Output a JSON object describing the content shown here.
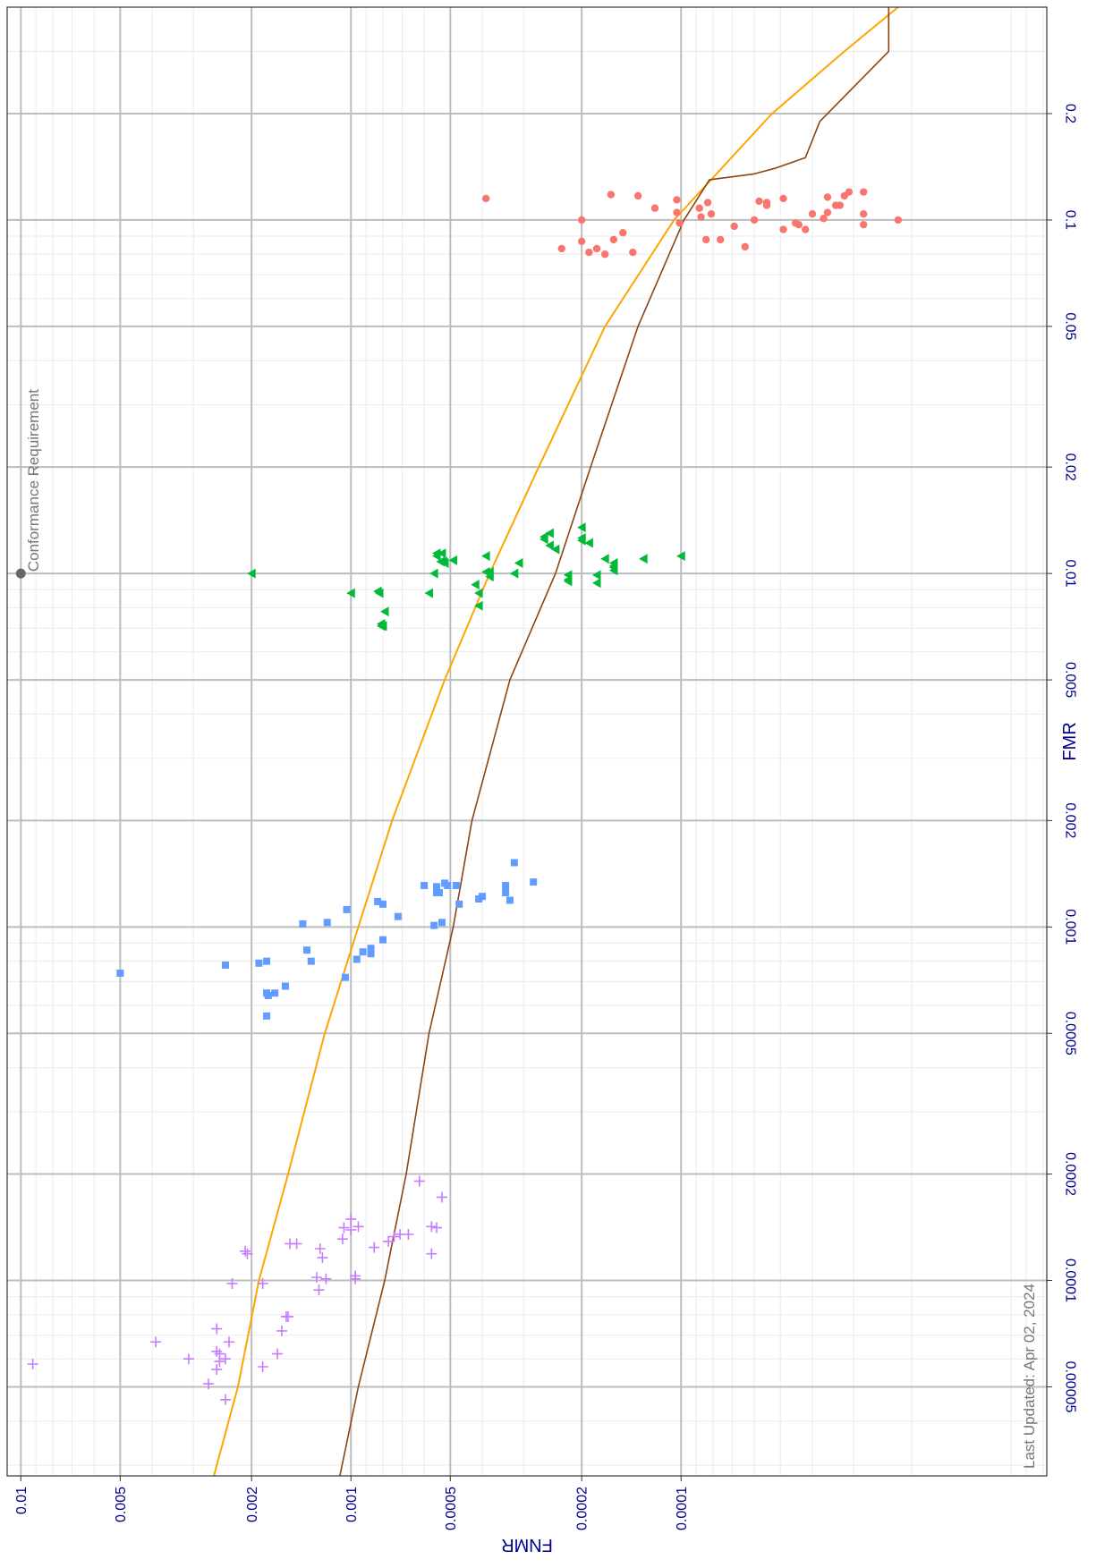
{
  "chart_data": {
    "type": "scatter",
    "orientation": "rotated-90-clockwise",
    "x_axis": {
      "label": "FMR",
      "scale": "log",
      "range": [
        2.8e-05,
        0.4
      ],
      "tick_values": [
        5e-05,
        0.0001,
        0.0002,
        0.0005,
        0.001,
        0.002,
        0.005,
        0.01,
        0.02,
        0.05,
        0.1,
        0.2
      ],
      "tick_labels": [
        "0.00005",
        "0.0001",
        "0.0002",
        "0.0005",
        "0.001",
        "0.002",
        "0.005",
        "0.01",
        "0.02",
        "0.05",
        "0.1",
        "0.2"
      ]
    },
    "y_axis": {
      "label": "FNMR",
      "scale": "log",
      "range": [
        7.8e-06,
        0.011
      ],
      "tick_values": [
        0.01,
        0.005,
        0.002,
        0.001,
        0.0005,
        0.0002,
        0.0001
      ],
      "tick_labels": [
        "0.01",
        "0.005",
        "0.002",
        "0.001",
        "0.0005",
        "0.0002",
        "0.0001"
      ]
    },
    "grid": true,
    "annotations": [
      {
        "text": "Conformance Requirement",
        "x": 0.01,
        "y": 0.01
      },
      {
        "text": "Last Updated: Apr 02, 2024"
      }
    ],
    "series": [
      {
        "marker": "circle",
        "color": "#f8766d",
        "points": [
          [
            0.115,
            0.00039
          ],
          [
            0.1,
            0.0002
          ],
          [
            0.088,
            0.00016
          ],
          [
            0.087,
            0.0002
          ],
          [
            0.083,
            0.00023
          ],
          [
            0.08,
            0.00017
          ],
          [
            0.083,
            0.00018
          ],
          [
            0.092,
            0.00015
          ],
          [
            0.081,
            0.00014
          ],
          [
            0.081,
            0.00019
          ],
          [
            0.118,
            0.000163
          ],
          [
            0.108,
            0.00012
          ],
          [
            0.117,
            0.000135
          ],
          [
            0.098,
            0.000101
          ],
          [
            0.108,
            8.8e-05
          ],
          [
            0.088,
            8.4e-05
          ],
          [
            0.084,
            6.4e-05
          ],
          [
            0.088,
            7.6e-05
          ],
          [
            0.104,
            8.1e-05
          ],
          [
            0.112,
            8.3e-05
          ],
          [
            0.114,
            0.000103
          ],
          [
            0.105,
            0.000103
          ],
          [
            0.102,
            8.7e-05
          ],
          [
            0.096,
            6.9e-05
          ],
          [
            0.1,
            6e-05
          ],
          [
            0.113,
            5.8e-05
          ],
          [
            0.11,
            5.5e-05
          ],
          [
            0.115,
            4.9e-05
          ],
          [
            0.112,
            5.5e-05
          ],
          [
            0.097,
            4.4e-05
          ],
          [
            0.094,
            4.9e-05
          ],
          [
            0.094,
            4.2e-05
          ],
          [
            0.098,
            4.5e-05
          ],
          [
            0.104,
            4e-05
          ],
          [
            0.101,
            3.7e-05
          ],
          [
            0.116,
            3.6e-05
          ],
          [
            0.105,
            3.6e-05
          ],
          [
            0.11,
            3.4e-05
          ],
          [
            0.11,
            3.3e-05
          ],
          [
            0.117,
            3.2e-05
          ],
          [
            0.12,
            3.1e-05
          ],
          [
            0.12,
            2.8e-05
          ],
          [
            0.104,
            2.8e-05
          ],
          [
            0.097,
            2.8e-05
          ],
          [
            0.1,
            2.2e-05
          ]
        ]
      },
      {
        "marker": "triangle",
        "color": "#00ba38",
        "points": [
          [
            0.01,
            0.002
          ],
          [
            0.0088,
            0.001
          ],
          [
            0.0089,
            0.00083
          ],
          [
            0.0088,
            0.00082
          ],
          [
            0.0078,
            0.00079
          ],
          [
            0.0072,
            0.00081
          ],
          [
            0.0071,
            0.00081
          ],
          [
            0.0071,
            0.0008
          ],
          [
            0.0088,
            0.00058
          ],
          [
            0.0081,
            0.00041
          ],
          [
            0.0088,
            0.00041
          ],
          [
            0.0093,
            0.00042
          ],
          [
            0.0114,
            0.00055
          ],
          [
            0.0112,
            0.00055
          ],
          [
            0.0114,
            0.00053
          ],
          [
            0.0107,
            0.00052
          ],
          [
            0.0108,
            0.000525
          ],
          [
            0.0108,
            0.000535
          ],
          [
            0.01,
            0.00056
          ],
          [
            0.0109,
            0.00049
          ],
          [
            0.0112,
            0.00039
          ],
          [
            0.0098,
            0.00038
          ],
          [
            0.0101,
            0.00038
          ],
          [
            0.0101,
            0.00039
          ],
          [
            0.01,
            0.00032
          ],
          [
            0.0107,
            0.00031
          ],
          [
            0.012,
            0.00025
          ],
          [
            0.0127,
            0.00026
          ],
          [
            0.013,
            0.00025
          ],
          [
            0.0125,
            0.00026
          ],
          [
            0.0117,
            0.00024
          ],
          [
            0.0099,
            0.00022
          ],
          [
            0.0096,
            0.00022
          ],
          [
            0.0095,
            0.00022
          ],
          [
            0.0124,
            0.0002
          ],
          [
            0.0135,
            0.0002
          ],
          [
            0.0126,
            0.0002
          ],
          [
            0.0122,
            0.00019
          ],
          [
            0.0099,
            0.00018
          ],
          [
            0.0094,
            0.00018
          ],
          [
            0.011,
            0.00017
          ],
          [
            0.0107,
            0.00016
          ],
          [
            0.0104,
            0.00016
          ],
          [
            0.0102,
            0.00016
          ],
          [
            0.0105,
            0.00016
          ],
          [
            0.011,
            0.00013
          ],
          [
            0.0112,
            0.0001
          ]
        ]
      },
      {
        "marker": "square",
        "color": "#619cff",
        "points": [
          [
            0.00074,
            0.005
          ],
          [
            0.00078,
            0.0024
          ],
          [
            0.00079,
            0.0019
          ],
          [
            0.0008,
            0.0018
          ],
          [
            0.00065,
            0.0018
          ],
          [
            0.00056,
            0.0018
          ],
          [
            0.00065,
            0.0017
          ],
          [
            0.00065,
            0.0018
          ],
          [
            0.00068,
            0.00158
          ],
          [
            0.00064,
            0.00178
          ],
          [
            0.00102,
            0.0014
          ],
          [
            0.0008,
            0.00132
          ],
          [
            0.00086,
            0.00136
          ],
          [
            0.00072,
            0.00104
          ],
          [
            0.00085,
            0.00092
          ],
          [
            0.00084,
            0.00087
          ],
          [
            0.00087,
            0.00087
          ],
          [
            0.00081,
            0.00096
          ],
          [
            0.00092,
            0.0008
          ],
          [
            0.00103,
            0.00118
          ],
          [
            0.00112,
            0.00103
          ],
          [
            0.00118,
            0.00083
          ],
          [
            0.00116,
            0.0008
          ],
          [
            0.00107,
            0.00072
          ],
          [
            0.00131,
            0.0006
          ],
          [
            0.0013,
            0.00055
          ],
          [
            0.00125,
            0.00055
          ],
          [
            0.00125,
            0.00054
          ],
          [
            0.00131,
            0.00048
          ],
          [
            0.00101,
            0.00056
          ],
          [
            0.00103,
            0.00053
          ],
          [
            0.00116,
            0.00047
          ],
          [
            0.00122,
            0.0004
          ],
          [
            0.0012,
            0.00041
          ],
          [
            0.00133,
            0.00052
          ],
          [
            0.00131,
            0.00051
          ],
          [
            0.00119,
            0.00033
          ],
          [
            0.00125,
            0.00034
          ],
          [
            0.00131,
            0.00034
          ],
          [
            0.00152,
            0.00032
          ],
          [
            0.00134,
            0.00028
          ]
        ]
      },
      {
        "marker": "cross",
        "color": "#c77cff",
        "points": [
          [
            5.8e-05,
            0.0092
          ],
          [
            6.7e-05,
            0.0039
          ],
          [
            6e-05,
            0.0031
          ],
          [
            5.1e-05,
            0.0027
          ],
          [
            7.3e-05,
            0.00255
          ],
          [
            6.3e-05,
            0.00255
          ],
          [
            5.6e-05,
            0.00255
          ],
          [
            6.2e-05,
            0.0025
          ],
          [
            5.9e-05,
            0.0025
          ],
          [
            6e-05,
            0.0024
          ],
          [
            4.6e-05,
            0.0024
          ],
          [
            6.7e-05,
            0.00234
          ],
          [
            9.8e-05,
            0.00229
          ],
          [
            0.000121,
            0.00209
          ],
          [
            0.000119,
            0.00206
          ],
          [
            5.7e-05,
            0.00185
          ],
          [
            9.8e-05,
            0.00185
          ],
          [
            6.2e-05,
            0.00167
          ],
          [
            7.2e-05,
            0.00162
          ],
          [
            7.9e-05,
            0.00157
          ],
          [
            7.9e-05,
            0.00155
          ],
          [
            0.000127,
            0.00153
          ],
          [
            0.000127,
            0.00146
          ],
          [
            0.000102,
            0.00127
          ],
          [
            0.000123,
            0.00124
          ],
          [
            0.000116,
            0.00122
          ],
          [
            0.000101,
            0.00119
          ],
          [
            9.4e-05,
            0.00125
          ],
          [
            0.000131,
            0.00106
          ],
          [
            0.000141,
            0.00105
          ],
          [
            0.000149,
            0.001
          ],
          [
            0.000139,
            0.001
          ],
          [
            0.000103,
            0.00097
          ],
          [
            0.000101,
            0.00097
          ],
          [
            0.000142,
            0.00095
          ],
          [
            0.000124,
            0.00085
          ],
          [
            0.000129,
            0.00077
          ],
          [
            0.000133,
            0.00074
          ],
          [
            0.000135,
            0.00071
          ],
          [
            0.000135,
            0.00067
          ],
          [
            0.000142,
            0.00057
          ],
          [
            0.000119,
            0.00057
          ],
          [
            0.000141,
            0.00055
          ],
          [
            0.000172,
            0.00053
          ],
          [
            0.000191,
            0.00062
          ]
        ]
      }
    ],
    "lines": [
      {
        "color": "#ffa500",
        "points": [
          [
            2.8e-05,
            0.0026
          ],
          [
            5e-05,
            0.0022
          ],
          [
            0.0001,
            0.0019
          ],
          [
            0.0002,
            0.00155
          ],
          [
            0.0005,
            0.0012
          ],
          [
            0.001,
            0.00095
          ],
          [
            0.002,
            0.00075
          ],
          [
            0.005,
            0.00052
          ],
          [
            0.01,
            0.00038
          ],
          [
            0.02,
            0.00027
          ],
          [
            0.05,
            0.00017
          ],
          [
            0.1,
            0.000105
          ],
          [
            0.2,
            5.3e-05
          ],
          [
            0.3,
            3.2e-05
          ],
          [
            0.4,
            2.2e-05
          ]
        ]
      },
      {
        "color": "#8b4513",
        "points": [
          [
            2.8e-05,
            0.00108
          ],
          [
            5e-05,
            0.00095
          ],
          [
            0.0001,
            0.00079
          ],
          [
            0.0002,
            0.00068
          ],
          [
            0.0005,
            0.00058
          ],
          [
            0.001,
            0.00049
          ],
          [
            0.002,
            0.00043
          ],
          [
            0.005,
            0.00033
          ],
          [
            0.01,
            0.00024
          ],
          [
            0.02,
            0.000188
          ],
          [
            0.05,
            0.000135
          ],
          [
            0.1,
            9.8e-05
          ],
          [
            0.13,
            8.2e-05
          ],
          [
            0.135,
            6e-05
          ],
          [
            0.14,
            5.2e-05
          ],
          [
            0.15,
            4.2e-05
          ],
          [
            0.19,
            3.8e-05
          ],
          [
            0.3,
            2.35e-05
          ],
          [
            0.4,
            2.35e-05
          ]
        ]
      }
    ]
  }
}
